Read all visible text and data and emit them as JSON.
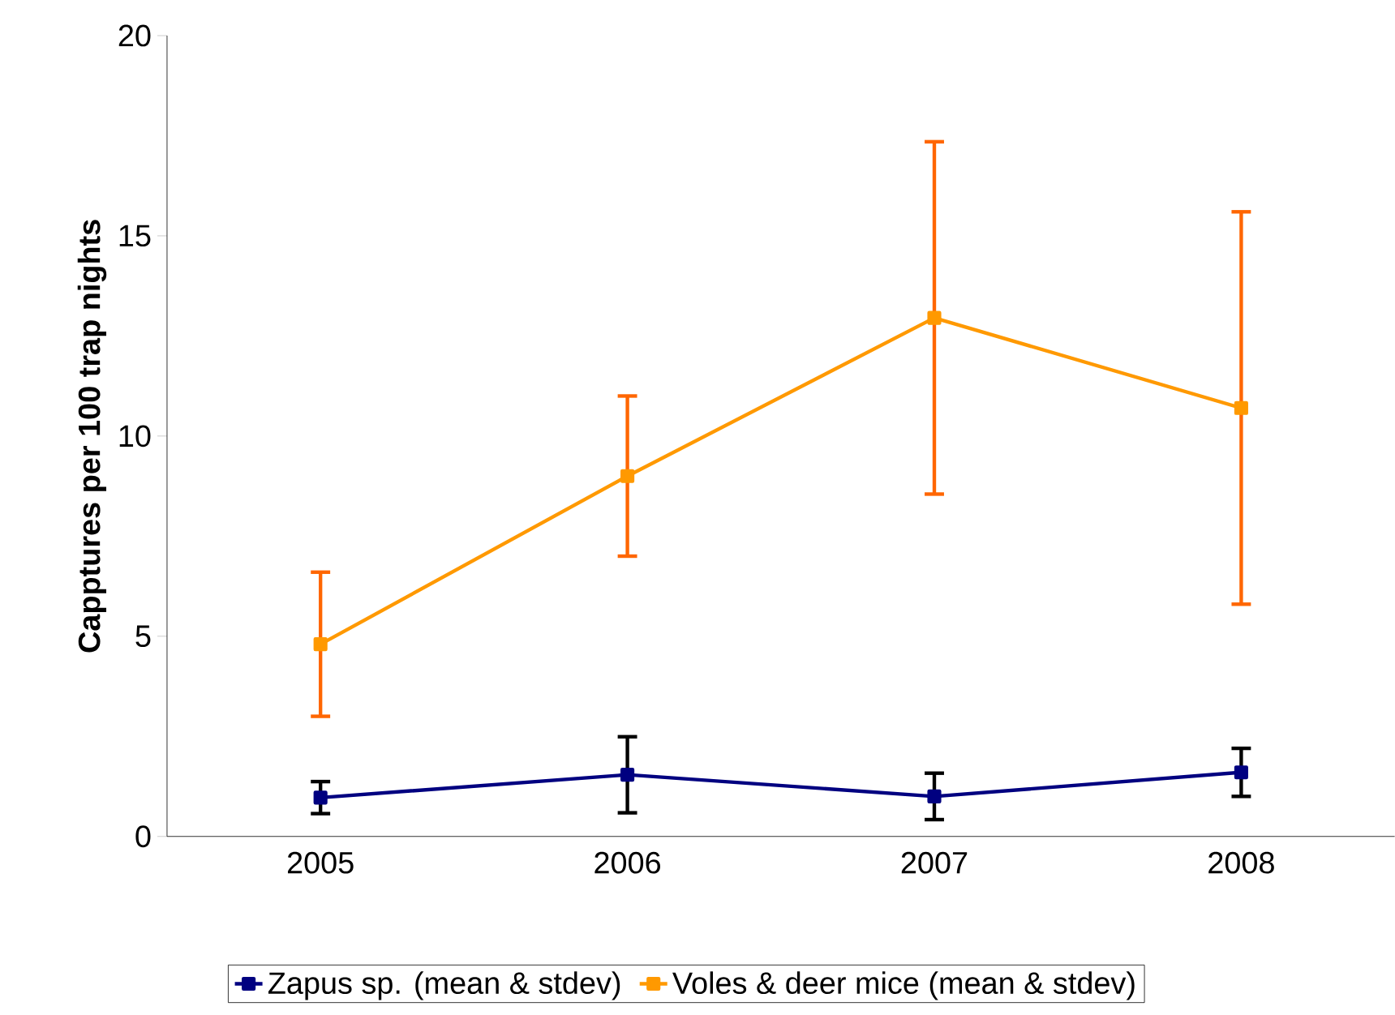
{
  "chart_data": {
    "type": "line",
    "ylabel": "Capptures per 100 trap nights",
    "categories": [
      "2005",
      "2006",
      "2007",
      "2008"
    ],
    "series": [
      {
        "name": "Zapus sp. (mean & stdev)",
        "color": "#000080",
        "values": [
          0.97,
          1.54,
          1.0,
          1.6
        ],
        "errors": [
          0.4,
          0.95,
          0.58,
          0.6
        ]
      },
      {
        "name": "Voles & deer mice (mean & stdev)",
        "color": "#ff9900",
        "values": [
          4.8,
          9.0,
          12.95,
          10.7
        ],
        "errors": [
          1.8,
          2.0,
          4.4,
          4.9
        ]
      }
    ],
    "ylim": [
      0,
      20
    ],
    "yticks": [
      0,
      5,
      10,
      15,
      20
    ],
    "grid": false,
    "legend": "bottom",
    "marker": "square",
    "line_style": "solid"
  }
}
